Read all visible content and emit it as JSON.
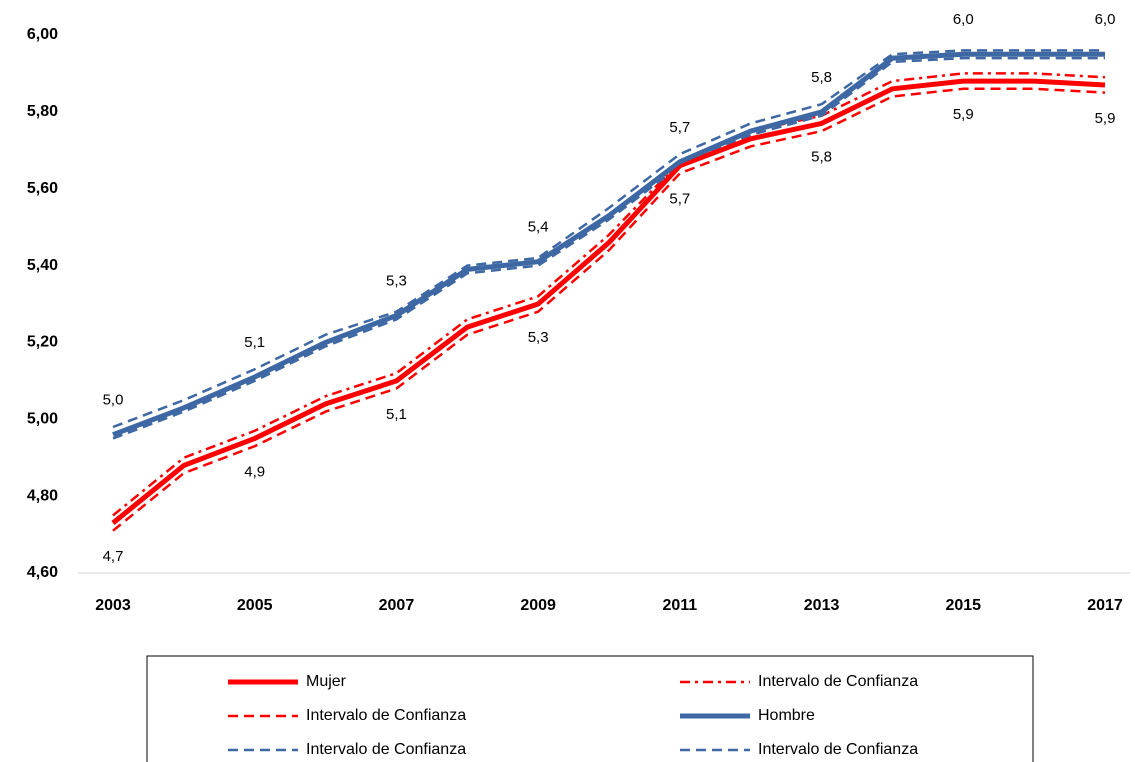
{
  "chart_data": {
    "type": "line",
    "x": [
      2003,
      2004,
      2005,
      2006,
      2007,
      2008,
      2009,
      2010,
      2011,
      2012,
      2013,
      2014,
      2015,
      2016,
      2017
    ],
    "xlim": [
      2003,
      2017
    ],
    "xticks": [
      2003,
      2005,
      2007,
      2009,
      2011,
      2013,
      2015,
      2017
    ],
    "ylim": [
      4.6,
      6.0
    ],
    "yticks": [
      {
        "value": 4.6,
        "label": "4,60"
      },
      {
        "value": 4.8,
        "label": "4,80"
      },
      {
        "value": 5.0,
        "label": "5,00"
      },
      {
        "value": 5.2,
        "label": "5,20"
      },
      {
        "value": 5.4,
        "label": "5,40"
      },
      {
        "value": 5.6,
        "label": "5,60"
      },
      {
        "value": 5.8,
        "label": "5,80"
      },
      {
        "value": 6.0,
        "label": "6,00"
      }
    ],
    "legend": "bottom",
    "series": [
      {
        "name": "Mujer",
        "color": "#ff0000",
        "style": "solid",
        "label_position": "below",
        "values": [
          4.73,
          4.88,
          4.95,
          5.04,
          5.1,
          5.24,
          5.3,
          5.46,
          5.66,
          5.73,
          5.77,
          5.86,
          5.88,
          5.88,
          5.87
        ],
        "value_labels": [
          "4,7",
          null,
          "4,9",
          null,
          "5,1",
          null,
          "5,3",
          null,
          "5,7",
          null,
          "5,8",
          null,
          "5,9",
          null,
          "5,9"
        ]
      },
      {
        "name": "Intervalo de Confianza",
        "color": "#ff0000",
        "style": "dashdot",
        "values": [
          4.75,
          4.9,
          4.97,
          5.06,
          5.12,
          5.26,
          5.32,
          5.48,
          5.67,
          5.75,
          5.79,
          5.88,
          5.9,
          5.9,
          5.89
        ]
      },
      {
        "name": "Intervalo de Confianza",
        "color": "#ff0000",
        "style": "dashed",
        "values": [
          4.71,
          4.86,
          4.93,
          5.02,
          5.08,
          5.22,
          5.28,
          5.44,
          5.64,
          5.71,
          5.75,
          5.84,
          5.86,
          5.86,
          5.85
        ]
      },
      {
        "name": "Hombre",
        "color": "#3e68a4",
        "style": "solid",
        "label_position": "above",
        "values": [
          4.96,
          5.03,
          5.11,
          5.2,
          5.27,
          5.39,
          5.41,
          5.53,
          5.67,
          5.75,
          5.8,
          5.94,
          5.95,
          5.95,
          5.95
        ],
        "value_labels": [
          "5,0",
          null,
          "5,1",
          null,
          "5,3",
          null,
          "5,4",
          null,
          "5,7",
          null,
          "5,8",
          null,
          "6,0",
          null,
          "6,0"
        ]
      },
      {
        "name": "Intervalo de Confianza",
        "color": "#3e68a4",
        "style": "dashed",
        "values": [
          4.98,
          5.05,
          5.13,
          5.22,
          5.28,
          5.4,
          5.42,
          5.55,
          5.69,
          5.77,
          5.82,
          5.95,
          5.96,
          5.96,
          5.96
        ]
      },
      {
        "name": "Intervalo de Confianza",
        "color": "#3e68a4",
        "style": "dashed",
        "values": [
          4.95,
          5.02,
          5.1,
          5.19,
          5.26,
          5.38,
          5.4,
          5.52,
          5.66,
          5.74,
          5.79,
          5.93,
          5.94,
          5.94,
          5.94
        ]
      }
    ]
  }
}
